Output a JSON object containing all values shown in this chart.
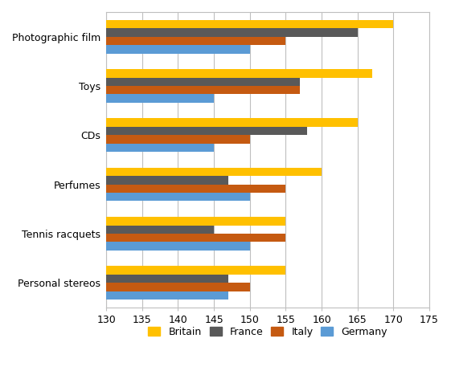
{
  "categories": [
    "Photographic film",
    "Toys",
    "CDs",
    "Perfumes",
    "Tennis racquets",
    "Personal stereos"
  ],
  "countries": [
    "Britain",
    "France",
    "Italy",
    "Germany"
  ],
  "colors": [
    "#FFC000",
    "#595959",
    "#C55A11",
    "#5B9BD5"
  ],
  "values": {
    "Britain": [
      170,
      167,
      165,
      160,
      155,
      155
    ],
    "France": [
      165,
      157,
      158,
      147,
      145,
      147
    ],
    "Italy": [
      155,
      157,
      150,
      155,
      155,
      150
    ],
    "Germany": [
      150,
      145,
      145,
      150,
      150,
      147
    ]
  },
  "xlim": [
    130,
    175
  ],
  "xticks": [
    130,
    135,
    140,
    145,
    150,
    155,
    160,
    165,
    170,
    175
  ],
  "legend_labels": [
    "Britain",
    "France",
    "Italy",
    "Germany"
  ],
  "background_color": "#FFFFFF",
  "grid_color": "#BFBFBF"
}
